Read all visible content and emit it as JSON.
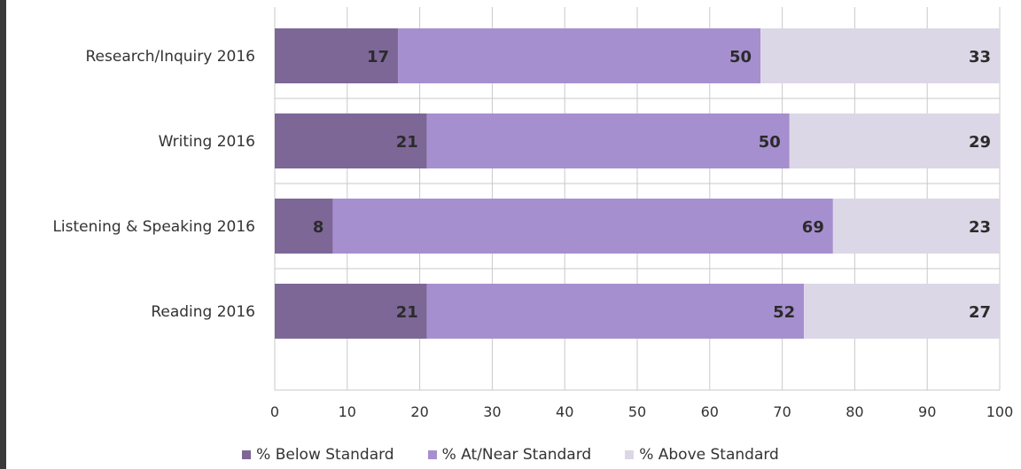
{
  "chart_data": {
    "type": "bar",
    "orientation": "horizontal",
    "stacked": true,
    "categories": [
      "Research/Inquiry 2016",
      "Writing 2016",
      "Listening & Speaking 2016",
      "Reading 2016"
    ],
    "series": [
      {
        "name": "% Below Standard",
        "values": [
          17,
          21,
          8,
          21
        ],
        "color": "#7d6797"
      },
      {
        "name": "% At/Near Standard",
        "values": [
          50,
          50,
          69,
          52
        ],
        "color": "#a68fcf"
      },
      {
        "name": "% Above Standard",
        "values": [
          33,
          29,
          23,
          27
        ],
        "color": "#dcd7e6"
      }
    ],
    "xlim": [
      0,
      100
    ],
    "xticks": [
      "0",
      "10",
      "20",
      "30",
      "40",
      "50",
      "60",
      "70",
      "80",
      "90",
      "100"
    ],
    "grid": true,
    "legend_position": "bottom"
  }
}
